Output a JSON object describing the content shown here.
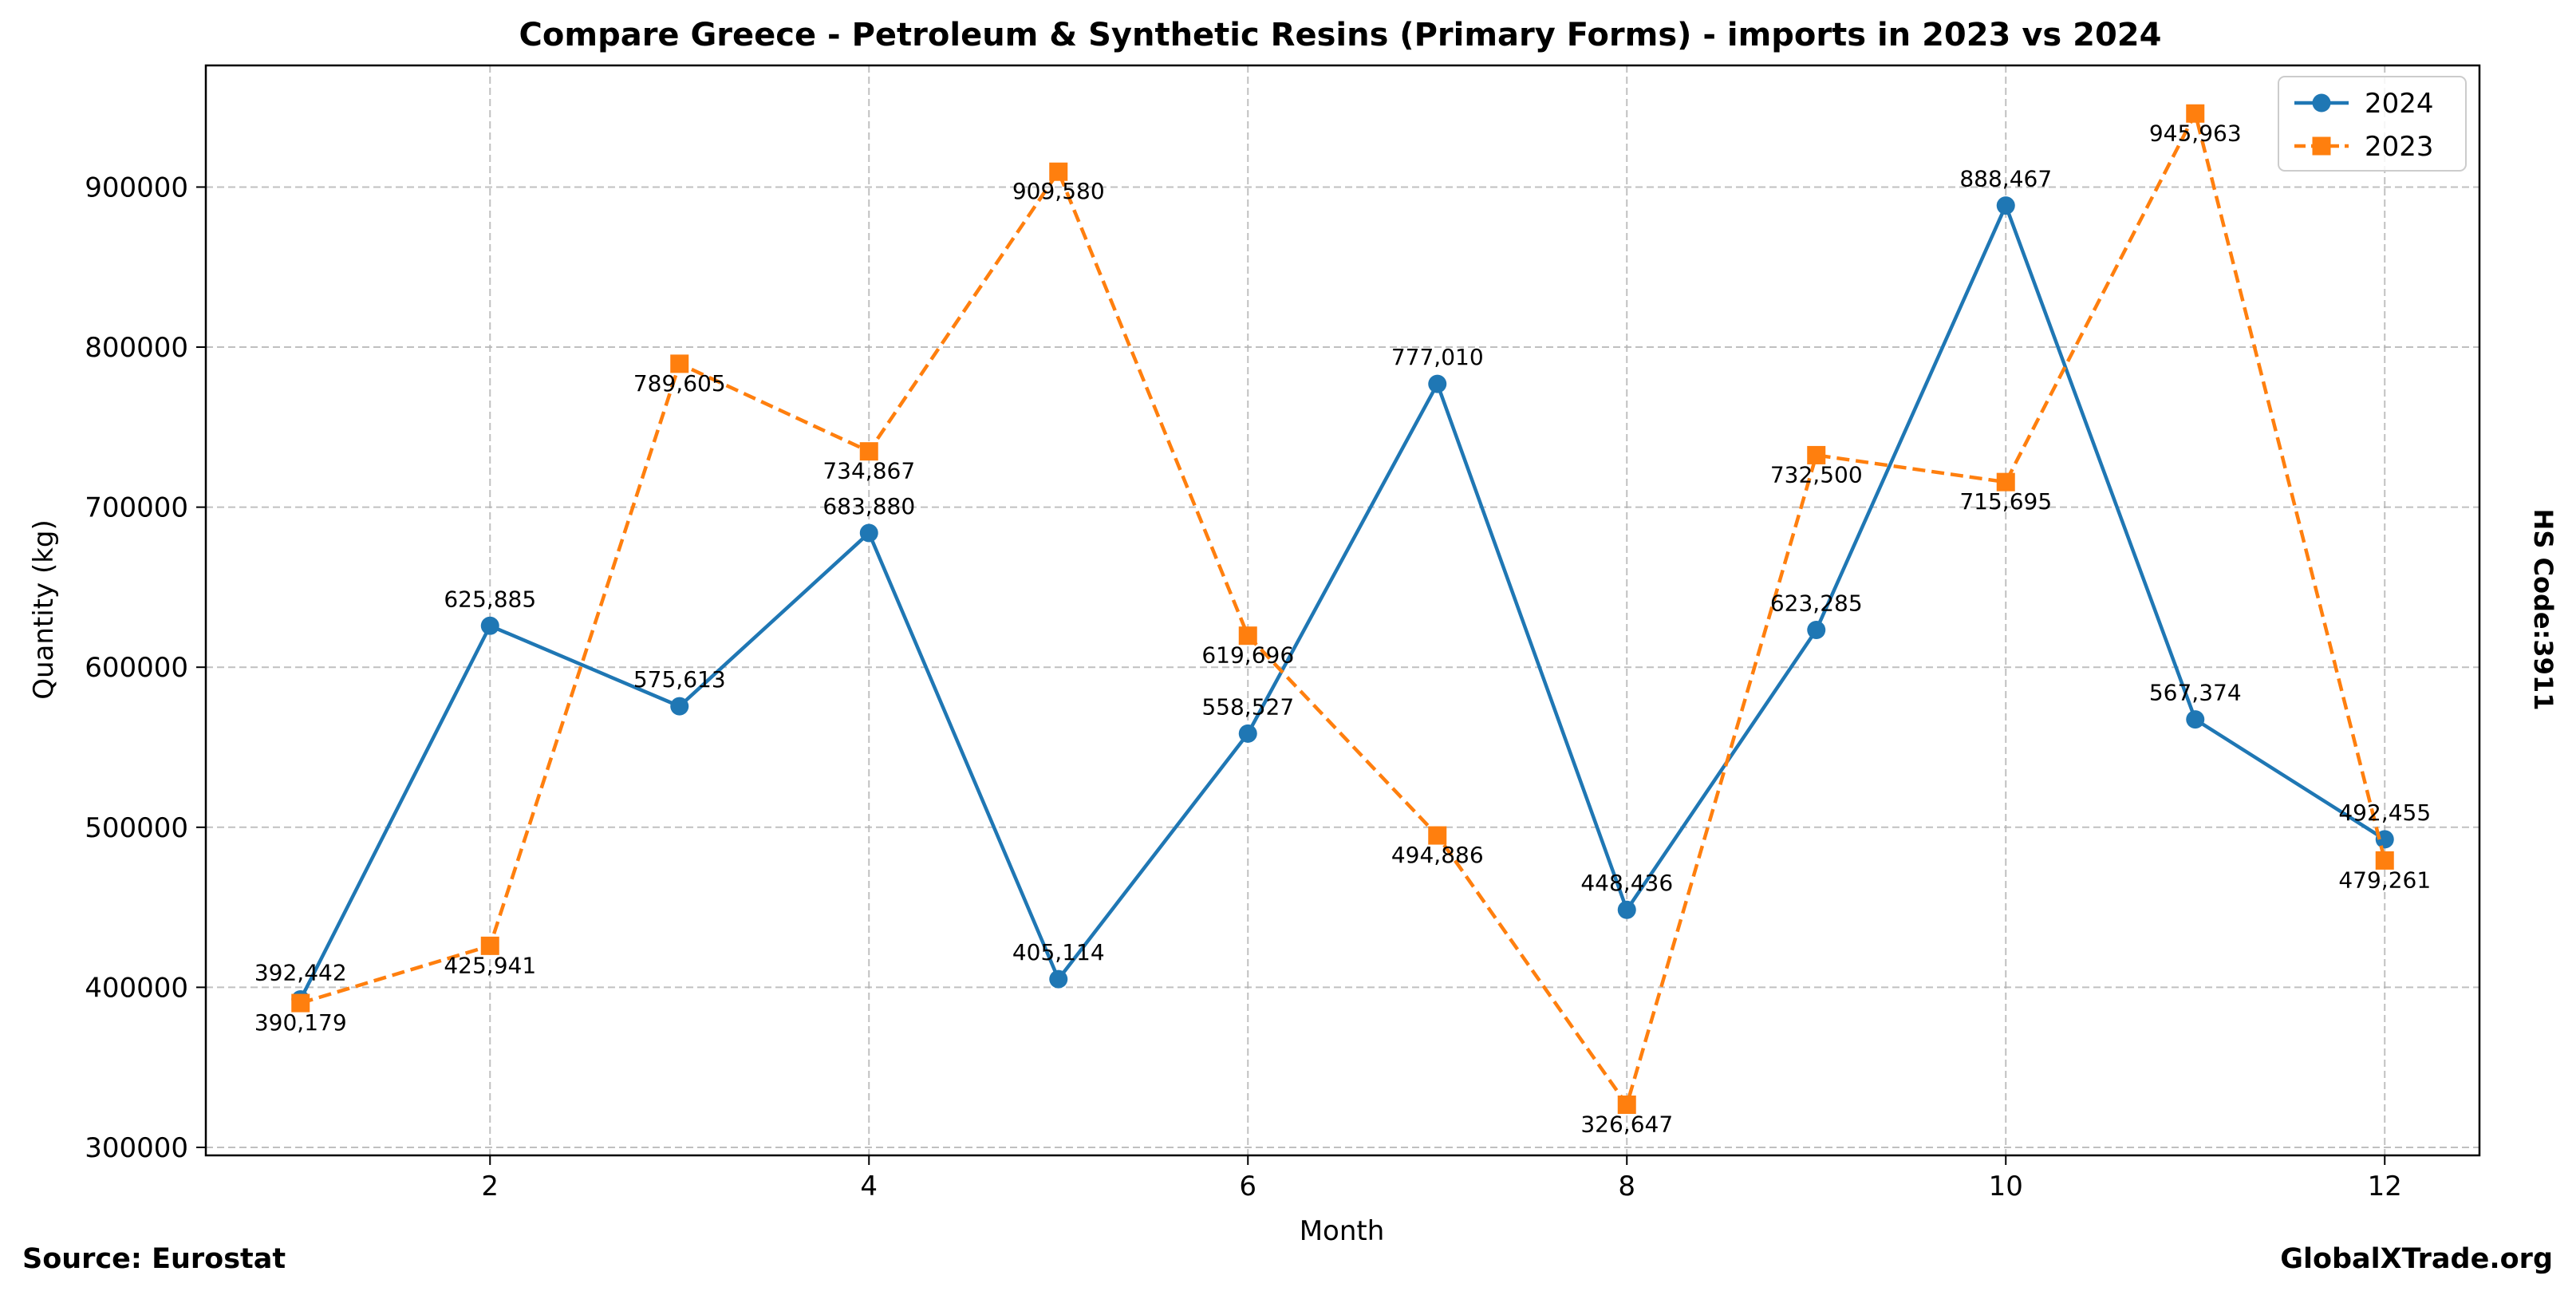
{
  "chart_data": {
    "type": "line",
    "title": "Compare Greece - Petroleum & Synthetic Resins (Primary Forms) - imports in 2023 vs 2024",
    "xlabel": "Month",
    "ylabel": "Quantity (kg)",
    "side_label": "HS Code:3911",
    "x": [
      1,
      2,
      3,
      4,
      5,
      6,
      7,
      8,
      9,
      10,
      11,
      12
    ],
    "xticks": [
      2,
      4,
      6,
      8,
      10,
      12
    ],
    "yticks": [
      300000,
      400000,
      500000,
      600000,
      700000,
      800000,
      900000
    ],
    "xlim": [
      0.5,
      12.5
    ],
    "ylim": [
      295000,
      976000
    ],
    "grid": true,
    "legend_position": "top-right",
    "series": [
      {
        "name": "2024",
        "color": "#1f77b4",
        "marker": "circle",
        "line_style": "solid",
        "values": [
          392442,
          625885,
          575613,
          683880,
          405114,
          558527,
          777010,
          448436,
          623285,
          888467,
          567374,
          492455
        ],
        "labels": [
          "392,442",
          "625,885",
          "575,613",
          "683,880",
          "405,114",
          "558,527",
          "777,010",
          "448,436",
          "623,285",
          "888,467",
          "567,374",
          "492,455"
        ]
      },
      {
        "name": "2023",
        "color": "#ff7f0e",
        "marker": "square",
        "line_style": "dashed",
        "values": [
          390179,
          425941,
          789605,
          734867,
          909580,
          619696,
          494886,
          326647,
          732500,
          715695,
          945963,
          479261
        ],
        "labels": [
          "390,179",
          "425,941",
          "789,605",
          "734,867",
          "909,580",
          "619,696",
          "494,886",
          "326,647",
          "732,500",
          "715,695",
          "945,963",
          "479,261"
        ]
      }
    ]
  },
  "footer": {
    "source": "Source: Eurostat",
    "brand": "GlobalXTrade.org"
  }
}
